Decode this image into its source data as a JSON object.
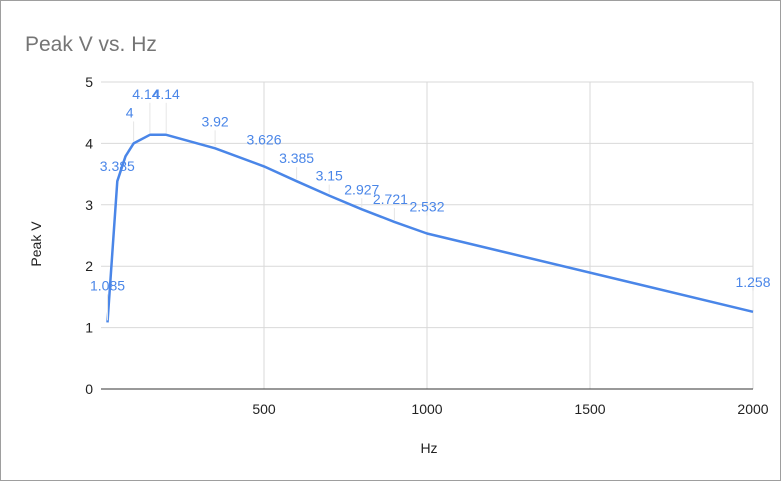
{
  "chart_data": {
    "type": "line",
    "title": "Peak V vs. Hz",
    "xlabel": "Hz",
    "ylabel": "Peak V",
    "xlim": [
      0,
      2000
    ],
    "ylim": [
      0,
      5
    ],
    "x_ticks": [
      500,
      1000,
      1500,
      2000
    ],
    "y_ticks": [
      0,
      1,
      2,
      3,
      4,
      5
    ],
    "grid": true,
    "legend": "none",
    "series_color": "#4a86e8",
    "series": [
      {
        "x": [
          20,
          50,
          75,
          100,
          150,
          200,
          350,
          500,
          600,
          700,
          800,
          900,
          1000,
          2000
        ],
        "values": [
          1.085,
          3.385,
          3.79,
          4,
          4.14,
          4.14,
          3.92,
          3.626,
          3.385,
          3.15,
          2.927,
          2.721,
          2.532,
          1.258
        ],
        "labels": [
          "1.085",
          "3.385",
          "",
          "4",
          "4.14",
          "4.14",
          "3.92",
          "3.626",
          "3.385",
          "3.15",
          "2.927",
          "2.721",
          "2.532",
          "1.258"
        ]
      }
    ]
  }
}
